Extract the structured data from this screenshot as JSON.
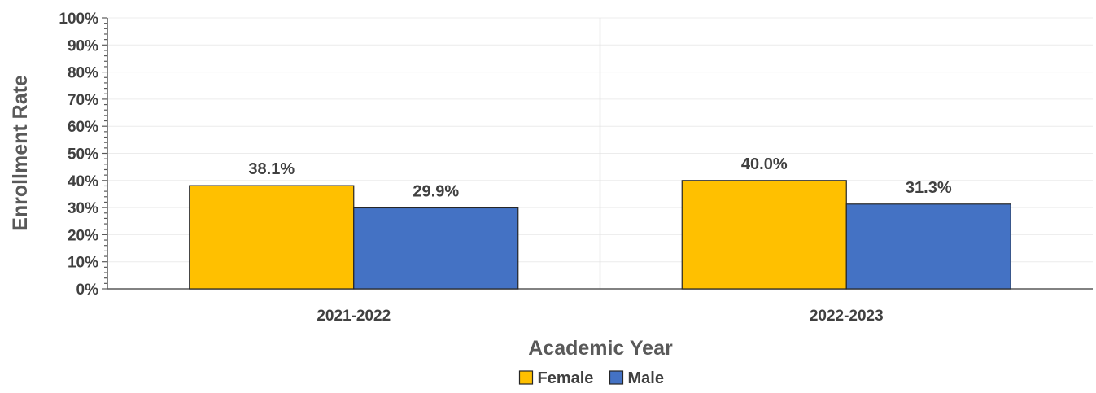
{
  "chart_data": {
    "type": "bar",
    "categories": [
      "2021-2022",
      "2022-2023"
    ],
    "series": [
      {
        "name": "Female",
        "values": [
          38.1,
          40.0
        ],
        "labels": [
          "38.1%",
          "40.0%"
        ],
        "color": "#FFC000"
      },
      {
        "name": "Male",
        "values": [
          29.9,
          31.3
        ],
        "labels": [
          "29.9%",
          "31.3%"
        ],
        "color": "#4472C4"
      }
    ],
    "xlabel": "Academic Year",
    "ylabel": "Enrollment Rate",
    "ylim": [
      0,
      100
    ],
    "yticks": [
      0,
      10,
      20,
      30,
      40,
      50,
      60,
      70,
      80,
      90,
      100
    ],
    "ytick_labels": [
      "0%",
      "10%",
      "20%",
      "30%",
      "40%",
      "50%",
      "60%",
      "70%",
      "80%",
      "90%",
      "100%"
    ],
    "grid": true,
    "legend": "bottom"
  }
}
